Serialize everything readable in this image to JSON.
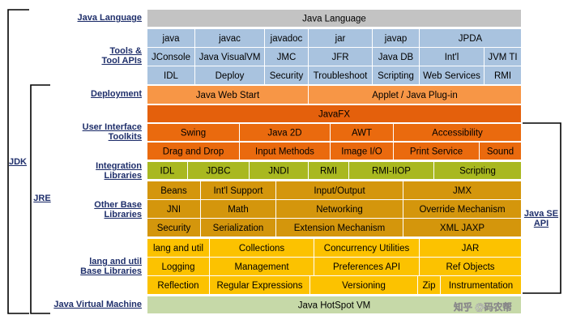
{
  "layers": [
    {
      "label": [
        "Java Language"
      ],
      "rows": [
        [
          "Java Language"
        ]
      ]
    },
    {
      "label": [
        "Tools &",
        "Tool APIs"
      ],
      "rows": [
        [
          "java",
          "javac",
          "javadoc",
          "jar",
          "javap",
          "JPDA"
        ],
        [
          "JConsole",
          "Java VisualVM",
          "JMC",
          "JFR",
          "Java DB",
          "Int'l",
          "JVM TI"
        ],
        [
          "IDL",
          "Deploy",
          "Security",
          "Troubleshoot",
          "Scripting",
          "Web Services",
          "RMI"
        ]
      ]
    },
    {
      "label": [
        "Deployment"
      ],
      "rows": [
        [
          "Java Web Start",
          "Applet / Java Plug-in"
        ]
      ]
    },
    {
      "label": [
        "User Interface",
        "Toolkits"
      ],
      "rows": [
        [
          "JavaFX"
        ],
        [
          "Swing",
          "Java 2D",
          "AWT",
          "Accessibility"
        ],
        [
          "Drag and Drop",
          "Input Methods",
          "Image I/O",
          "Print Service",
          "Sound"
        ]
      ]
    },
    {
      "label": [
        "Integration",
        "Libraries"
      ],
      "rows": [
        [
          "IDL",
          "JDBC",
          "JNDI",
          "RMI",
          "RMI-IIOP",
          "Scripting"
        ]
      ]
    },
    {
      "label": [
        "Other Base",
        "Libraries"
      ],
      "rows": [
        [
          "Beans",
          "Int'l Support",
          "Input/Output",
          "JMX"
        ],
        [
          "JNI",
          "Math",
          "Networking",
          "Override Mechanism"
        ],
        [
          "Security",
          "Serialization",
          "Extension Mechanism",
          "XML JAXP"
        ]
      ]
    },
    {
      "label": [
        "lang and util",
        "Base Libraries"
      ],
      "rows": [
        [
          "lang and util",
          "Collections",
          "Concurrency Utilities",
          "JAR"
        ],
        [
          "Logging",
          "Management",
          "Preferences API",
          "Ref Objects"
        ],
        [
          "Reflection",
          "Regular Expressions",
          "Versioning",
          "Zip",
          "Instrumentation"
        ]
      ]
    },
    {
      "label": [
        "Java Virtual Machine"
      ],
      "rows": [
        [
          "Java HotSpot VM"
        ]
      ]
    }
  ],
  "brackets": {
    "jdk": [
      "JDK"
    ],
    "jre": [
      "JRE"
    ],
    "api": [
      "Java SE",
      "API"
    ]
  },
  "watermark": "知乎 @码农帮"
}
